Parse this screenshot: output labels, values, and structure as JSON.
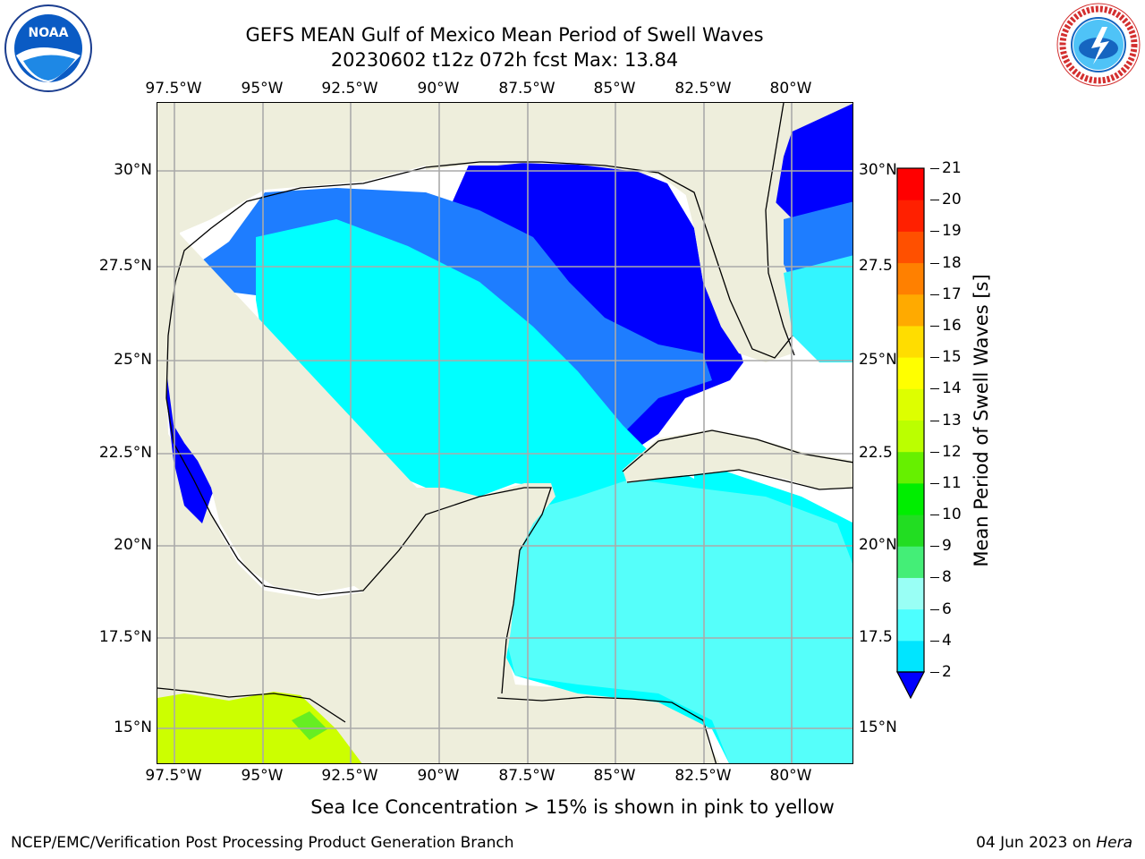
{
  "title_line1": "GEFS MEAN Gulf of Mexico Mean Period of Swell Waves",
  "title_line2": "20230602 t12z 072h fcst   Max: 13.84",
  "lon_labels": [
    "97.5°W",
    "95°W",
    "92.5°W",
    "90°W",
    "87.5°W",
    "85°W",
    "82.5°W",
    "80°W"
  ],
  "lat_labels_left": [
    "30°N",
    "27.5°N",
    "25°N",
    "22.5°N",
    "20°N",
    "17.5°N",
    "15°N"
  ],
  "lat_labels_right": [
    "30°N",
    "27.5",
    "25°N",
    "22.5",
    "20°N",
    "17.5",
    "15°N"
  ],
  "colorbar": {
    "title": "Mean Period of Swell Waves [s]",
    "ticks": [
      "2",
      "4",
      "6",
      "8",
      "9",
      "10",
      "11",
      "12",
      "13",
      "14",
      "15",
      "16",
      "17",
      "18",
      "19",
      "20",
      "21"
    ],
    "colors": [
      "#0044ff",
      "#0099ff",
      "#00e5ff",
      "#4dffff",
      "#99fff5",
      "#44ee77",
      "#22dd22",
      "#00ee00",
      "#66f000",
      "#bbff00",
      "#ddff00",
      "#ffff00",
      "#ffdd00",
      "#ffaa00",
      "#ff8000",
      "#ff5000",
      "#ff2000",
      "#ff0000"
    ],
    "extend_color": "#0000ff"
  },
  "colors": {
    "land": "#eeeedc",
    "blue": "#0000ff",
    "medium_blue": "#1e7dff",
    "cyan": "#00ffff",
    "light_cyan": "#55fffa",
    "yellow_green": "#ccff00",
    "green": "#66ee22",
    "grid": "#aaaaaa"
  },
  "note": "Sea Ice Concentration > 15% is shown in pink to yellow",
  "credit": "NCEP/EMC/Verification Post Processing Product Generation Branch",
  "date_prefix": "04 Jun 2023 on ",
  "date_host": "Hera",
  "logos": {
    "left": "noaa-logo",
    "right": "nws-logo"
  }
}
